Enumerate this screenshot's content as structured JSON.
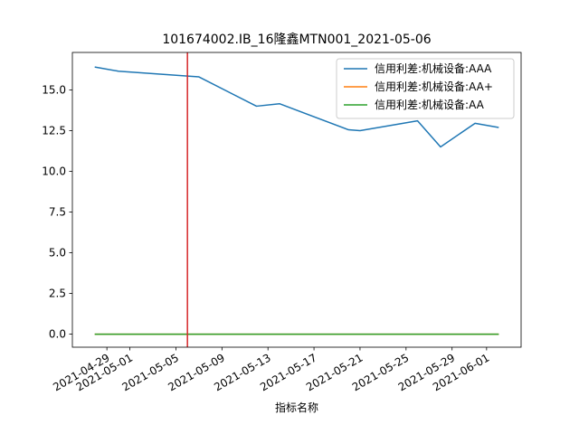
{
  "chart_data": {
    "type": "line",
    "title": "101674002.IB_16隆鑫MTN001_2021-05-06",
    "xlabel": "指标名称",
    "ylabel": "",
    "x_type": "date",
    "xlim": [
      "2021-04-26",
      "2021-06-04"
    ],
    "ylim": [
      -0.8,
      17.3
    ],
    "x_ticks": [
      "2021-04-29",
      "2021-05-01",
      "2021-05-05",
      "2021-05-09",
      "2021-05-13",
      "2021-05-17",
      "2021-05-21",
      "2021-05-25",
      "2021-05-29",
      "2021-06-01"
    ],
    "y_ticks": [
      0.0,
      2.5,
      5.0,
      7.5,
      10.0,
      12.5,
      15.0
    ],
    "y_tick_labels": [
      "0.0",
      "2.5",
      "5.0",
      "7.5",
      "10.0",
      "12.5",
      "15.0"
    ],
    "reference_line": {
      "x": "2021-05-06",
      "color": "#d62728"
    },
    "grid": false,
    "legend_position": "upper right",
    "series": [
      {
        "name": "信用利差:机械设备:AAA",
        "color": "#1f77b4",
        "x": [
          "2021-04-28",
          "2021-04-30",
          "2021-05-06",
          "2021-05-07",
          "2021-05-12",
          "2021-05-14",
          "2021-05-20",
          "2021-05-21",
          "2021-05-26",
          "2021-05-28",
          "2021-05-31",
          "2021-06-02"
        ],
        "y": [
          16.4,
          16.15,
          15.85,
          15.8,
          14.0,
          14.15,
          12.55,
          12.5,
          13.1,
          11.5,
          12.95,
          12.7
        ]
      },
      {
        "name": "信用利差:机械设备:AA+",
        "color": "#ff7f0e",
        "x": [
          "2021-04-28",
          "2021-06-02"
        ],
        "y": [
          0.0,
          0.0
        ]
      },
      {
        "name": "信用利差:机械设备:AA",
        "color": "#2ca02c",
        "x": [
          "2021-04-28",
          "2021-06-02"
        ],
        "y": [
          0.0,
          0.0
        ]
      }
    ]
  }
}
